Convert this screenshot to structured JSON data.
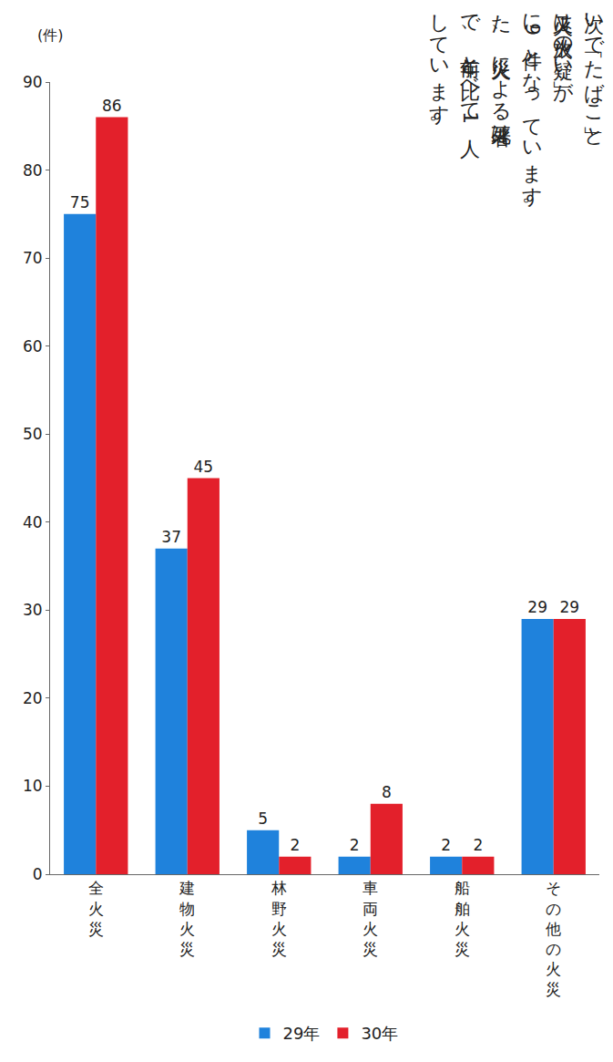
{
  "chart_data": {
    "type": "bar",
    "ylabel": "(件)",
    "categories": [
      "全火災",
      "建物火災",
      "林野火災",
      "車両火災",
      "船舶火災",
      "その他の火災"
    ],
    "series": [
      {
        "name": "29年",
        "color": "#1f82dc",
        "values": [
          75,
          37,
          5,
          2,
          2,
          29
        ]
      },
      {
        "name": "30年",
        "color": "#e3202b",
        "values": [
          86,
          45,
          2,
          8,
          2,
          29
        ]
      }
    ],
    "ylim": [
      0,
      90
    ],
    "yticks": [
      0,
      10,
      20,
      30,
      40,
      50,
      60,
      70,
      80,
      90
    ],
    "grid": false,
    "legend": "bottom",
    "data_labels": true,
    "annotations": [
      "次いで「たばこ」と",
      "火又は放火の疑い」が",
      "に9件となっています。",
      "た、火災による死者は",
      "で、前年と比べて1人",
      "しています。"
    ]
  }
}
